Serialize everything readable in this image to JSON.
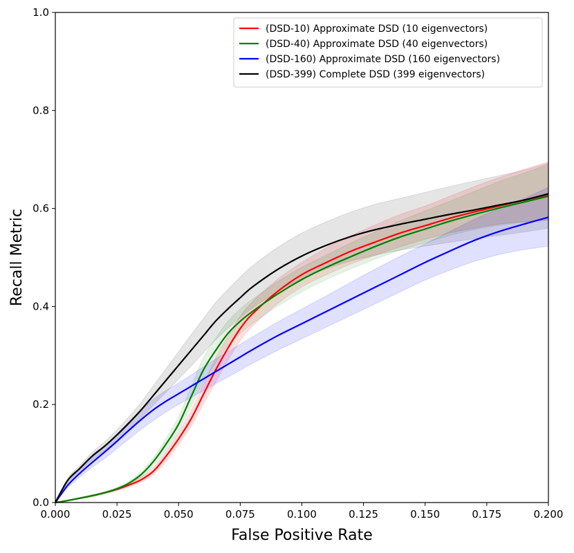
{
  "chart_data": {
    "type": "line",
    "title": "",
    "xlabel": "False Positive Rate",
    "ylabel": "Recall Metric",
    "xlim": [
      0,
      0.2
    ],
    "ylim": [
      0,
      1.0
    ],
    "xticks": [
      0.0,
      0.025,
      0.05,
      0.075,
      0.1,
      0.125,
      0.15,
      0.175,
      0.2
    ],
    "xtick_labels": [
      "0.000",
      "0.025",
      "0.050",
      "0.075",
      "0.100",
      "0.125",
      "0.150",
      "0.175",
      "0.200"
    ],
    "yticks": [
      0.0,
      0.2,
      0.4,
      0.6,
      0.8,
      1.0
    ],
    "ytick_labels": [
      "0.0",
      "0.2",
      "0.4",
      "0.6",
      "0.8",
      "1.0"
    ],
    "grid": false,
    "legend_position": "top-right",
    "x": [
      0.0,
      0.005,
      0.01,
      0.015,
      0.02,
      0.025,
      0.03,
      0.035,
      0.04,
      0.045,
      0.05,
      0.055,
      0.06,
      0.065,
      0.07,
      0.075,
      0.08,
      0.09,
      0.1,
      0.11,
      0.12,
      0.13,
      0.14,
      0.15,
      0.16,
      0.17,
      0.18,
      0.19,
      0.2
    ],
    "series": [
      {
        "name": "(DSD-10) Approximate DSD (10 eigenvectors)",
        "color": "#ff0000",
        "fill": "rgba(255,0,0,0.12)",
        "values": [
          0.0,
          0.004,
          0.009,
          0.014,
          0.02,
          0.027,
          0.036,
          0.047,
          0.065,
          0.095,
          0.13,
          0.17,
          0.22,
          0.27,
          0.315,
          0.355,
          0.385,
          0.43,
          0.465,
          0.49,
          0.513,
          0.532,
          0.55,
          0.565,
          0.58,
          0.593,
          0.605,
          0.617,
          0.628
        ],
        "lower": [
          0.0,
          0.003,
          0.008,
          0.012,
          0.018,
          0.024,
          0.032,
          0.042,
          0.058,
          0.085,
          0.118,
          0.155,
          0.2,
          0.245,
          0.29,
          0.33,
          0.36,
          0.405,
          0.44,
          0.465,
          0.487,
          0.505,
          0.522,
          0.537,
          0.55,
          0.56,
          0.568,
          0.573,
          0.576
        ],
        "upper": [
          0.0,
          0.005,
          0.01,
          0.016,
          0.022,
          0.03,
          0.04,
          0.053,
          0.073,
          0.105,
          0.142,
          0.187,
          0.24,
          0.295,
          0.34,
          0.38,
          0.41,
          0.455,
          0.49,
          0.52,
          0.545,
          0.567,
          0.588,
          0.605,
          0.625,
          0.645,
          0.663,
          0.68,
          0.695
        ]
      },
      {
        "name": "(DSD-40) Approximate DSD (40 eigenvectors)",
        "color": "#008000",
        "fill": "rgba(0,128,0,0.10)",
        "values": [
          0.0,
          0.004,
          0.009,
          0.014,
          0.02,
          0.028,
          0.04,
          0.058,
          0.085,
          0.12,
          0.16,
          0.215,
          0.27,
          0.31,
          0.345,
          0.37,
          0.39,
          0.425,
          0.455,
          0.48,
          0.502,
          0.523,
          0.542,
          0.558,
          0.574,
          0.588,
          0.601,
          0.613,
          0.625
        ],
        "lower": [
          0.0,
          0.003,
          0.008,
          0.012,
          0.018,
          0.025,
          0.036,
          0.052,
          0.077,
          0.108,
          0.145,
          0.195,
          0.245,
          0.285,
          0.32,
          0.345,
          0.365,
          0.4,
          0.43,
          0.455,
          0.477,
          0.497,
          0.515,
          0.53,
          0.545,
          0.557,
          0.566,
          0.572,
          0.577
        ],
        "upper": [
          0.0,
          0.005,
          0.01,
          0.016,
          0.022,
          0.031,
          0.044,
          0.064,
          0.093,
          0.132,
          0.175,
          0.235,
          0.295,
          0.335,
          0.37,
          0.395,
          0.415,
          0.45,
          0.48,
          0.505,
          0.53,
          0.553,
          0.575,
          0.595,
          0.615,
          0.635,
          0.655,
          0.672,
          0.69
        ]
      },
      {
        "name": "(DSD-160) Approximate DSD (160 eigenvectors)",
        "color": "#0000ff",
        "fill": "rgba(0,0,255,0.12)",
        "values": [
          0.0,
          0.035,
          0.06,
          0.082,
          0.103,
          0.125,
          0.148,
          0.17,
          0.19,
          0.207,
          0.222,
          0.237,
          0.252,
          0.267,
          0.282,
          0.297,
          0.312,
          0.34,
          0.365,
          0.39,
          0.415,
          0.44,
          0.465,
          0.49,
          0.513,
          0.535,
          0.553,
          0.568,
          0.582
        ],
        "lower": [
          0.0,
          0.03,
          0.052,
          0.072,
          0.09,
          0.11,
          0.13,
          0.15,
          0.168,
          0.185,
          0.2,
          0.214,
          0.228,
          0.242,
          0.256,
          0.27,
          0.284,
          0.31,
          0.334,
          0.358,
          0.382,
          0.406,
          0.43,
          0.454,
          0.474,
          0.492,
          0.506,
          0.516,
          0.523
        ],
        "upper": [
          0.0,
          0.04,
          0.068,
          0.092,
          0.116,
          0.14,
          0.166,
          0.19,
          0.212,
          0.229,
          0.244,
          0.26,
          0.277,
          0.293,
          0.308,
          0.323,
          0.338,
          0.368,
          0.395,
          0.422,
          0.45,
          0.477,
          0.503,
          0.528,
          0.553,
          0.578,
          0.6,
          0.62,
          0.643
        ]
      },
      {
        "name": "(DSD-399) Complete DSD (399 eigenvectors)",
        "color": "#000000",
        "fill": "rgba(0,0,0,0.10)",
        "values": [
          0.0,
          0.045,
          0.07,
          0.095,
          0.115,
          0.138,
          0.163,
          0.19,
          0.22,
          0.25,
          0.28,
          0.31,
          0.34,
          0.37,
          0.395,
          0.418,
          0.44,
          0.475,
          0.503,
          0.525,
          0.543,
          0.557,
          0.568,
          0.578,
          0.588,
          0.597,
          0.607,
          0.617,
          0.63
        ],
        "lower": [
          0.0,
          0.04,
          0.064,
          0.087,
          0.106,
          0.127,
          0.15,
          0.174,
          0.2,
          0.226,
          0.252,
          0.278,
          0.305,
          0.332,
          0.355,
          0.377,
          0.397,
          0.43,
          0.457,
          0.477,
          0.493,
          0.505,
          0.515,
          0.523,
          0.531,
          0.538,
          0.545,
          0.552,
          0.56
        ],
        "upper": [
          0.0,
          0.05,
          0.076,
          0.103,
          0.124,
          0.149,
          0.176,
          0.206,
          0.24,
          0.274,
          0.308,
          0.342,
          0.375,
          0.408,
          0.435,
          0.46,
          0.483,
          0.52,
          0.55,
          0.573,
          0.593,
          0.609,
          0.621,
          0.633,
          0.645,
          0.656,
          0.667,
          0.678,
          0.693
        ]
      }
    ]
  }
}
